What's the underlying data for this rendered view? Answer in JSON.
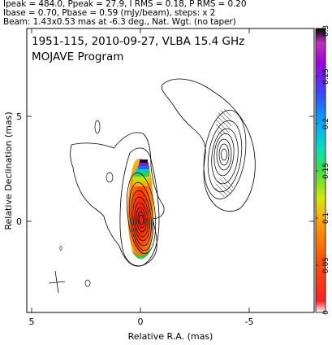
{
  "header": {
    "line1": "Ipeak = 484.0, Ppeak = 27.9, I RMS = 0.18, P RMS = 0.20",
    "line2": "Ibase = 0.70, Pbase = 0.59 (mJy/beam), steps: x 2",
    "line3": "Beam: 1.43x0.53 mas at -6.3 deg., Nat. Wgt. (no taper)"
  },
  "plot": {
    "title": "1951-115, 2010-09-27, VLBA 15.4 GHz",
    "subtitle": "MOJAVE Program",
    "xlabel": "Relative R.A. (mas)",
    "ylabel": "Relative Declination (mas)",
    "xticks": [
      "5",
      "0",
      "-5"
    ],
    "yticks": [
      "5",
      "0"
    ]
  },
  "colorbar": {
    "ticks": [
      "0",
      "0.05",
      "0.1",
      "0.15",
      "0.2",
      "0.25",
      "0.3"
    ],
    "colors": [
      "#ffffff",
      "#ff0000",
      "#ff7f00",
      "#ffff00",
      "#00ff00",
      "#00ffff",
      "#0000ff",
      "#8b00ff",
      "#000000"
    ]
  }
}
